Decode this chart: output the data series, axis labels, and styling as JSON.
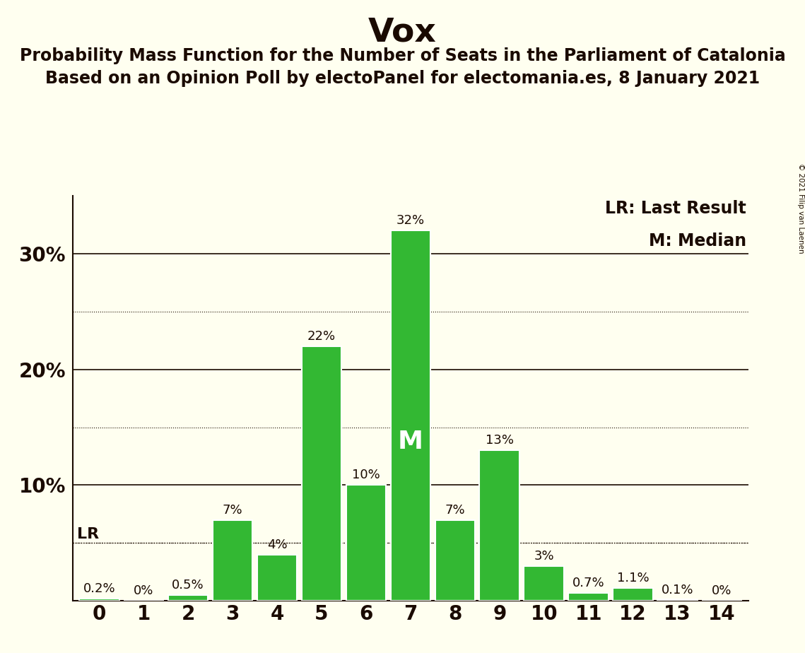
{
  "title": "Vox",
  "subtitle1": "Probability Mass Function for the Number of Seats in the Parliament of Catalonia",
  "subtitle2": "Based on an Opinion Poll by electoPanel for electomania.es, 8 January 2021",
  "copyright": "© 2021 Filip van Laenen",
  "categories": [
    0,
    1,
    2,
    3,
    4,
    5,
    6,
    7,
    8,
    9,
    10,
    11,
    12,
    13,
    14
  ],
  "values": [
    0.2,
    0.0,
    0.5,
    7.0,
    4.0,
    22.0,
    10.0,
    32.0,
    7.0,
    13.0,
    3.0,
    0.7,
    1.1,
    0.1,
    0.0
  ],
  "labels": [
    "0.2%",
    "0%",
    "0.5%",
    "7%",
    "4%",
    "22%",
    "10%",
    "32%",
    "7%",
    "13%",
    "3%",
    "0.7%",
    "1.1%",
    "0.1%",
    "0%"
  ],
  "bar_color": "#33b833",
  "background_color": "#fffff0",
  "text_color": "#1a0a00",
  "median_seat": 7,
  "lr_value": 5.0,
  "ylim_max": 35,
  "legend_lr": "LR: Last Result",
  "legend_m": "M: Median",
  "title_fontsize": 34,
  "subtitle_fontsize": 17,
  "bar_label_fontsize": 13,
  "axis_tick_fontsize": 20,
  "legend_fontsize": 17,
  "median_label_fontsize": 26
}
